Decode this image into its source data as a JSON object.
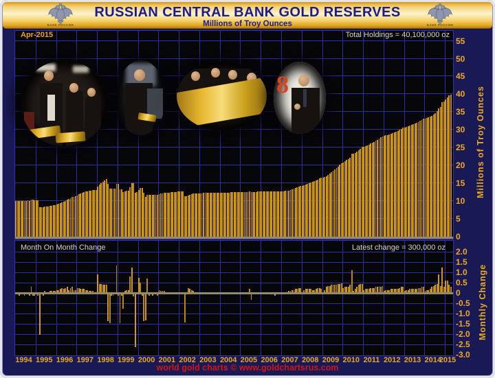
{
  "header": {
    "title": "RUSSIAN CENTRAL BANK GOLD RESERVES",
    "subtitle": "Millions of Troy Ounces",
    "left_logo": "bank-of-russia-eagle-emblem",
    "right_logo": "bank-of-russia-eagle-emblem",
    "logo_caption": "БАНК РОССИИ"
  },
  "upper_panel": {
    "period_label": "Apr-2015",
    "total_label": "Total Holdings = 40,100,000 oz",
    "y_axis_label": "Millions of Troy Ounces",
    "y_ticks": [
      "55",
      "50",
      "45",
      "40",
      "35",
      "30",
      "25",
      "20",
      "15",
      "10",
      "5",
      "0"
    ]
  },
  "lower_panel": {
    "title": "Month On Month Change",
    "latest_label": "Latest change = 300,000 oz",
    "y_axis_label": "Monthly Change",
    "y_ticks": [
      "2.0",
      "1.5",
      "1.0",
      "0.5",
      "0",
      "-0.5",
      "-1.0",
      "-1.5",
      "-2.0",
      "-2.5",
      "-3.0"
    ]
  },
  "x_axis": {
    "years": [
      "1994",
      "1995",
      "1996",
      "1997",
      "1998",
      "1999",
      "2000",
      "2001",
      "2002",
      "2003",
      "2004",
      "2005",
      "2006",
      "2007",
      "2008",
      "2009",
      "2010",
      "2011",
      "2012",
      "2013",
      "2014",
      "2015"
    ]
  },
  "footer": {
    "credit": "world gold charts © www.goldchartsrus.com"
  },
  "photos": [
    {
      "name": "officials-presenting-gold-bars-photo"
    },
    {
      "name": "putin-holding-gold-bar-photo"
    },
    {
      "name": "officials-with-large-gold-bar-photo"
    },
    {
      "name": "medvedev-pointing-photo",
      "badge_text": "8"
    }
  ],
  "colors": {
    "bar_gold": "#d09914",
    "grid_blue": "#2d2da8",
    "panel_navy": "#191955",
    "plot_black": "#070709",
    "tick_gold": "#f0aa1e",
    "header_title_navy": "#1c1c8a",
    "zero_axis_grey": "#918b6b",
    "footer_red": "#d41414",
    "annotation_grey": "#d4d4c8"
  },
  "chart_data": [
    {
      "type": "bar",
      "title": "Russian Central Bank Gold Reserves",
      "series_name": "Total gold holdings",
      "unit": "millions of troy ounces",
      "x_start": "1994-01",
      "x_end": "2015-04",
      "x_step": "month",
      "ylim": [
        0,
        55
      ],
      "y_tick_step": 5,
      "latest": {
        "label": "Apr-2015",
        "value": 40.1
      },
      "holdings_by_year": [
        {
          "year": 1994,
          "values": [
            10.3,
            10.3,
            10.25,
            10.3,
            10.3,
            10.25,
            10.3,
            10.35,
            10.3,
            10.6,
            10.55,
            10.5
          ]
        },
        {
          "year": 1995,
          "values": [
            10.5,
            10.45,
            8.5,
            8.55,
            8.5,
            8.6,
            8.65,
            8.7,
            8.8,
            8.9,
            9.0,
            9.1
          ]
        },
        {
          "year": 1996,
          "values": [
            9.25,
            9.4,
            9.6,
            9.85,
            10.05,
            10.3,
            10.6,
            10.75,
            11.0,
            11.3,
            11.45,
            11.6
          ]
        },
        {
          "year": 1997,
          "values": [
            11.85,
            12.1,
            12.3,
            12.5,
            12.7,
            12.85,
            13.0,
            13.1,
            13.2,
            13.3,
            13.35,
            13.4
          ]
        },
        {
          "year": 1998,
          "values": [
            14.3,
            14.75,
            15.2,
            15.6,
            16.0,
            16.4,
            15.1,
            13.7,
            13.65,
            13.6,
            13.65,
            15.0
          ]
        },
        {
          "year": 1999,
          "values": [
            14.95,
            13.55,
            13.5,
            12.8,
            12.9,
            13.05,
            13.2,
            14.0,
            15.25,
            15.15,
            12.6,
            12.65
          ]
        },
        {
          "year": 2000,
          "values": [
            13.4,
            13.9,
            13.85,
            12.55,
            11.3,
            12.0,
            11.95,
            12.0,
            11.95,
            12.0,
            12.05,
            12.0
          ]
        },
        {
          "year": 2001,
          "values": [
            12.15,
            12.25,
            12.35,
            12.45,
            12.5,
            12.55,
            12.6,
            12.65,
            12.7,
            12.75,
            12.8,
            12.85
          ]
        },
        {
          "year": 2002,
          "values": [
            12.85,
            12.9,
            12.9,
            11.55,
            11.6,
            11.85,
            12.05,
            12.2,
            12.3,
            12.35,
            12.4,
            12.4
          ]
        },
        {
          "year": 2003,
          "values": [
            12.4,
            12.4,
            12.45,
            12.45,
            12.45,
            12.5,
            12.5,
            12.5,
            12.5,
            12.55,
            12.55,
            12.55
          ]
        },
        {
          "year": 2004,
          "values": [
            12.55,
            12.55,
            12.6,
            12.6,
            12.6,
            12.6,
            12.65,
            12.65,
            12.65,
            12.65,
            12.7,
            12.7
          ]
        },
        {
          "year": 2005,
          "values": [
            12.7,
            12.7,
            12.7,
            12.75,
            12.75,
            12.95,
            12.7,
            12.75,
            12.8,
            12.8,
            12.85,
            12.85
          ]
        },
        {
          "year": 2006,
          "values": [
            12.9,
            12.9,
            12.9,
            12.9,
            12.95,
            12.95,
            12.95,
            12.95,
            12.9,
            12.9,
            12.9,
            12.91
          ]
        },
        {
          "year": 2007,
          "values": [
            12.95,
            13.0,
            13.05,
            13.1,
            13.2,
            13.3,
            13.45,
            13.6,
            13.8,
            14.0,
            14.25,
            14.5
          ]
        },
        {
          "year": 2008,
          "values": [
            14.55,
            14.7,
            14.9,
            15.1,
            15.3,
            15.5,
            15.65,
            15.8,
            16.0,
            16.25,
            16.5,
            16.7
          ]
        },
        {
          "year": 2009,
          "values": [
            16.75,
            16.9,
            17.2,
            17.55,
            17.9,
            18.3,
            18.7,
            19.1,
            19.5,
            19.95,
            20.4,
            20.87
          ]
        },
        {
          "year": 2010,
          "values": [
            21.1,
            21.4,
            21.7,
            22.0,
            22.4,
            23.5,
            23.6,
            23.8,
            24.1,
            24.5,
            24.95,
            25.38
          ]
        },
        {
          "year": 2011,
          "values": [
            25.5,
            25.7,
            25.9,
            26.1,
            26.35,
            26.6,
            26.85,
            27.15,
            27.45,
            27.75,
            28.05,
            28.39
          ]
        },
        {
          "year": 2012,
          "values": [
            28.5,
            28.65,
            28.8,
            28.95,
            29.15,
            29.35,
            29.55,
            29.75,
            29.95,
            30.2,
            30.5,
            30.79
          ]
        },
        {
          "year": 2013,
          "values": [
            30.9,
            31.05,
            31.2,
            31.4,
            31.6,
            31.8,
            32.0,
            32.2,
            32.45,
            32.7,
            33.0,
            33.3
          ]
        },
        {
          "year": 2014,
          "values": [
            33.4,
            33.55,
            33.7,
            33.9,
            34.2,
            34.55,
            34.95,
            35.4,
            36.3,
            36.65,
            37.9,
            38.2
          ]
        },
        {
          "year": 2015,
          "values": [
            38.8,
            39.4,
            39.8,
            40.1
          ]
        }
      ]
    },
    {
      "type": "bar",
      "title": "Month On Month Change",
      "unit": "millions of troy ounces",
      "ylim": [
        -3.0,
        2.0
      ],
      "y_tick_step": 0.5,
      "latest_change": 0.3,
      "derivation": "month-over-month difference of the holdings series above"
    }
  ]
}
